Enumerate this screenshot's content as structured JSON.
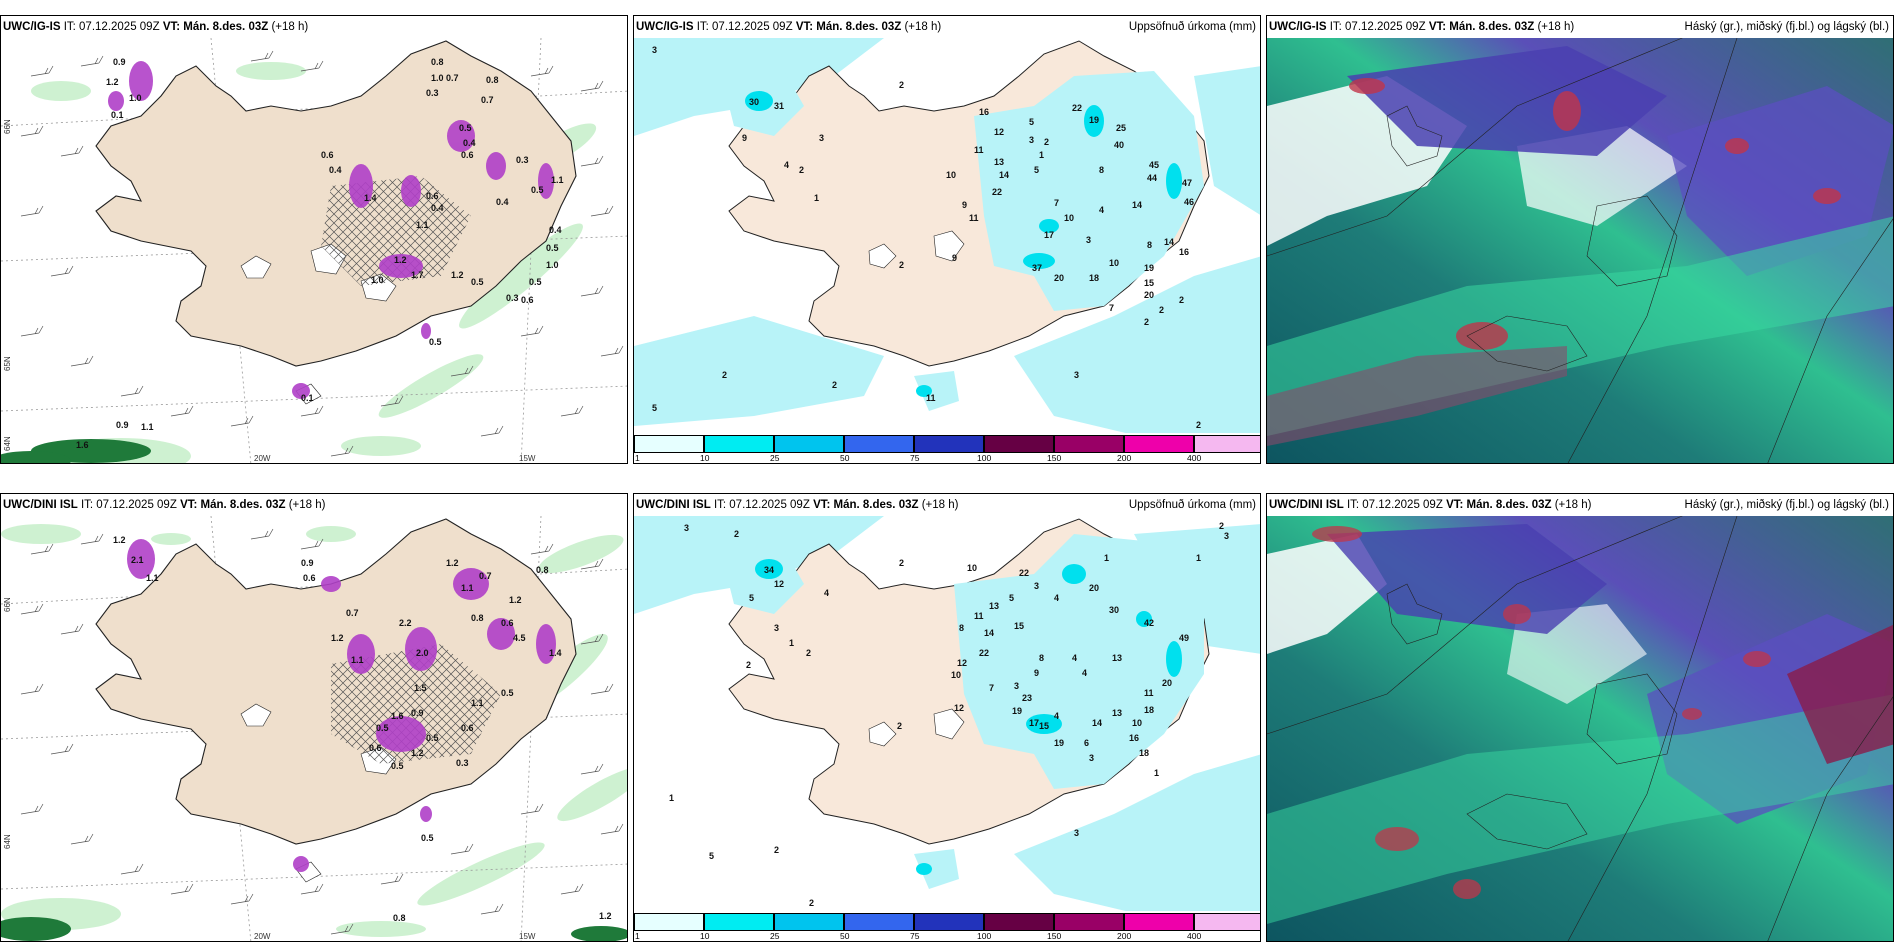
{
  "panels": [
    {
      "id": "r1c1",
      "model": "UWC/IG-IS",
      "it": "IT: 07.12.2025 09Z",
      "vt": "VT: Mán. 8.des. 03Z",
      "lead": "(+18 h)",
      "title": "",
      "axis": {
        "lon1": "20W",
        "lon2": "15W",
        "lat1": "66N",
        "lat2": "64N",
        "lat3": "65N",
        "lat4": "64N"
      },
      "values": [
        "0.9",
        "1.2",
        "1.0",
        "0.1",
        "0.8",
        "1.0",
        "0.3",
        "0.7",
        "0.5",
        "0.7",
        "0.8",
        "0.4",
        "0.6",
        "0.3",
        "1.1",
        "0.5",
        "0.4",
        "0.6",
        "1.4",
        "0.4",
        "1.1",
        "0.4",
        "0.6",
        "1.2",
        "1.0",
        "1.7",
        "1.2",
        "0.5",
        "0.5",
        "0.6",
        "0.3",
        "0.4",
        "0.5",
        "1.0",
        "0.5",
        "0.1",
        "0.9",
        "1.1",
        "1.6"
      ]
    },
    {
      "id": "r1c2",
      "model": "UWC/IG-IS",
      "it": "IT: 07.12.2025 09Z",
      "vt": "VT: Mán. 8.des. 03Z",
      "lead": "(+18 h)",
      "title": "Uppsöfnuð úrkoma (mm)",
      "values": [
        "3",
        "2",
        "30",
        "31",
        "9",
        "3",
        "4",
        "2",
        "1",
        "16",
        "12",
        "5",
        "22",
        "19",
        "25",
        "40",
        "3",
        "2",
        "1",
        "11",
        "13",
        "10",
        "14",
        "5",
        "8",
        "22",
        "45",
        "44",
        "47",
        "46",
        "9",
        "11",
        "7",
        "10",
        "4",
        "14",
        "17",
        "3",
        "8",
        "14",
        "16",
        "9",
        "2",
        "37",
        "20",
        "18",
        "10",
        "19",
        "15",
        "20",
        "7",
        "2",
        "2",
        "2",
        "3",
        "5",
        "2",
        "2",
        "11",
        "2"
      ],
      "colorbar": {
        "ticks": [
          "1",
          "10",
          "25",
          "50",
          "75",
          "100",
          "150",
          "200",
          "400"
        ],
        "colors": [
          "#e6ffff",
          "#00ecf2",
          "#00c4ee",
          "#3366ee",
          "#2233bb",
          "#660044",
          "#990066",
          "#ee00aa",
          "#f5b8f0"
        ]
      }
    },
    {
      "id": "r1c3",
      "model": "UWC/IG-IS",
      "it": "IT: 07.12.2025 09Z",
      "vt": "VT: Mán. 8.des. 03Z",
      "lead": "(+18 h)",
      "title": "Háský (gr.), miðský (fj.bl.) og lágský (bl.)"
    },
    {
      "id": "r2c1",
      "model": "UWC/DINI ISL",
      "it": "IT: 07.12.2025 09Z",
      "vt": "VT: Mán. 8.des. 03Z",
      "lead": "(+18 h)",
      "title": "",
      "axis": {
        "lon1": "20W",
        "lon2": "15W",
        "lat1": "66N",
        "lat2": "64N",
        "lat3": "65N",
        "lat4": "64N"
      },
      "values": [
        "1.2",
        "2.1",
        "1.1",
        "0.9",
        "0.6",
        "0.7",
        "1.2",
        "0.7",
        "0.8",
        "1.1",
        "1.2",
        "2.2",
        "0.8",
        "0.6",
        "4.5",
        "1.2",
        "1.4",
        "1.1",
        "2.0",
        "1.5",
        "0.9",
        "1.6",
        "0.5",
        "1.1",
        "0.5",
        "0.6",
        "0.5",
        "1.2",
        "0.6",
        "0.5",
        "0.3",
        "0.5",
        "0.8",
        "1.2"
      ]
    },
    {
      "id": "r2c2",
      "model": "UWC/DINI ISL",
      "it": "IT: 07.12.2025 09Z",
      "vt": "VT: Mán. 8.des. 03Z",
      "lead": "(+18 h)",
      "title": "Uppsöfnuð úrkoma (mm)",
      "values": [
        "3",
        "2",
        "2",
        "34",
        "5",
        "3",
        "4",
        "12",
        "1",
        "2",
        "2",
        "10",
        "22",
        "3",
        "1",
        "5",
        "13",
        "4",
        "11",
        "8",
        "14",
        "15",
        "20",
        "30",
        "42",
        "49",
        "22",
        "8",
        "9",
        "4",
        "4",
        "13",
        "12",
        "10",
        "12",
        "2",
        "7",
        "3",
        "19",
        "17",
        "4",
        "15",
        "23",
        "20",
        "19",
        "13",
        "11",
        "14",
        "10",
        "18",
        "6",
        "3",
        "16",
        "18",
        "1",
        "3",
        "1",
        "2",
        "3",
        "5",
        "1",
        "2",
        "2",
        "1"
      ],
      "colorbar": {
        "ticks": [
          "1",
          "10",
          "25",
          "50",
          "75",
          "100",
          "150",
          "200",
          "400"
        ],
        "colors": [
          "#e6ffff",
          "#00ecf2",
          "#00c4ee",
          "#3366ee",
          "#2233bb",
          "#660044",
          "#990066",
          "#ee00aa",
          "#f5b8f0"
        ]
      }
    },
    {
      "id": "r2c3",
      "model": "UWC/DINI ISL",
      "it": "IT: 07.12.2025 09Z",
      "vt": "VT: Mán. 8.des. 03Z",
      "lead": "(+18 h)",
      "title": "Háský (gr.), miðský (fj.bl.) og lágský (bl.)"
    }
  ]
}
